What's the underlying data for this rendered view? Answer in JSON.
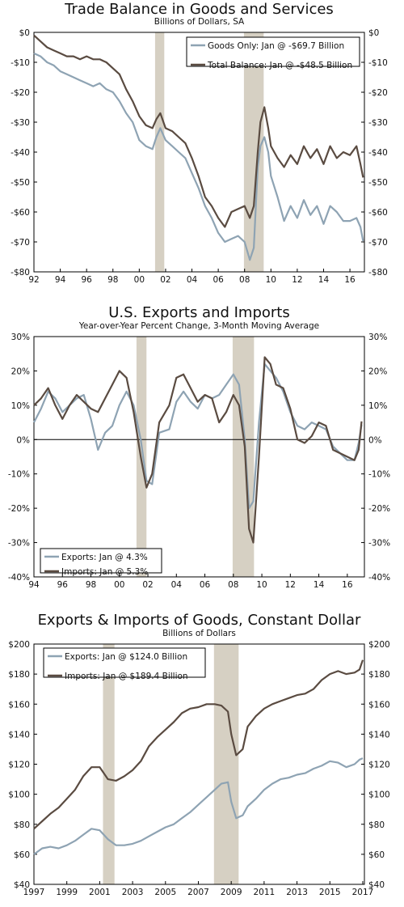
{
  "chart_data": [
    {
      "type": "line",
      "title": "Trade Balance in Goods and Services",
      "subtitle": "Billions of Dollars, SA",
      "ylim": [
        -80,
        0
      ],
      "yticks": [
        0,
        -10,
        -20,
        -30,
        -40,
        -50,
        -60,
        -70,
        -80
      ],
      "ytick_labels": [
        "$0",
        "-$10",
        "-$20",
        "-$30",
        "-$40",
        "-$50",
        "-$60",
        "-$70",
        "-$80"
      ],
      "xlim": [
        1992,
        2017.1
      ],
      "xticks": [
        1992,
        1994,
        1996,
        1998,
        2000,
        2002,
        2004,
        2006,
        2008,
        2010,
        2012,
        2014,
        2016
      ],
      "xtick_labels": [
        "92",
        "94",
        "96",
        "98",
        "00",
        "02",
        "04",
        "06",
        "08",
        "10",
        "12",
        "14",
        "16"
      ],
      "recessions": [
        [
          2001.2,
          2001.9
        ],
        [
          2007.95,
          2009.45
        ]
      ],
      "legend_position": "top-right",
      "series": [
        {
          "name": "Goods Only: Jan @ -$69.7 Billion",
          "color": "#8ea3b3",
          "x": [
            1992.0,
            1992.5,
            1993.0,
            1993.5,
            1994.0,
            1994.5,
            1995.0,
            1995.5,
            1996.0,
            1996.5,
            1997.0,
            1997.5,
            1998.0,
            1998.5,
            1999.0,
            1999.5,
            2000.0,
            2000.5,
            2001.0,
            2001.3,
            2001.6,
            2002.0,
            2002.5,
            2003.0,
            2003.5,
            2004.0,
            2004.5,
            2005.0,
            2005.5,
            2006.0,
            2006.5,
            2007.0,
            2007.5,
            2008.0,
            2008.4,
            2008.7,
            2009.0,
            2009.2,
            2009.5,
            2009.8,
            2010.0,
            2010.5,
            2011.0,
            2011.5,
            2012.0,
            2012.5,
            2013.0,
            2013.5,
            2014.0,
            2014.5,
            2015.0,
            2015.5,
            2016.0,
            2016.5,
            2016.8,
            2017.0
          ],
          "y": [
            -7,
            -8,
            -10,
            -11,
            -13,
            -14,
            -15,
            -16,
            -17,
            -18,
            -17,
            -19,
            -20,
            -23,
            -27,
            -30,
            -36,
            -38,
            -39,
            -35,
            -32,
            -36,
            -38,
            -40,
            -42,
            -47,
            -52,
            -58,
            -62,
            -67,
            -70,
            -69,
            -68,
            -70,
            -76,
            -72,
            -45,
            -38,
            -35,
            -40,
            -48,
            -55,
            -63,
            -58,
            -62,
            -56,
            -61,
            -58,
            -64,
            -58,
            -60,
            -63,
            -63,
            -62,
            -65,
            -69.7
          ]
        },
        {
          "name": "Total Balance: Jan @ -$48.5 Billion",
          "color": "#5a4b41",
          "x": [
            1992.0,
            1992.5,
            1993.0,
            1993.5,
            1994.0,
            1994.5,
            1995.0,
            1995.5,
            1996.0,
            1996.5,
            1997.0,
            1997.5,
            1998.0,
            1998.5,
            1999.0,
            1999.5,
            2000.0,
            2000.5,
            2001.0,
            2001.3,
            2001.6,
            2002.0,
            2002.5,
            2003.0,
            2003.5,
            2004.0,
            2004.5,
            2005.0,
            2005.5,
            2006.0,
            2006.5,
            2007.0,
            2007.5,
            2008.0,
            2008.4,
            2008.7,
            2009.0,
            2009.2,
            2009.5,
            2009.8,
            2010.0,
            2010.5,
            2011.0,
            2011.5,
            2012.0,
            2012.5,
            2013.0,
            2013.5,
            2014.0,
            2014.5,
            2015.0,
            2015.5,
            2016.0,
            2016.5,
            2016.8,
            2017.0
          ],
          "y": [
            -1,
            -3,
            -5,
            -6,
            -7,
            -8,
            -8,
            -9,
            -8,
            -9,
            -9,
            -10,
            -12,
            -14,
            -19,
            -23,
            -28,
            -31,
            -32,
            -29,
            -27,
            -32,
            -33,
            -35,
            -37,
            -42,
            -48,
            -55,
            -58,
            -62,
            -65,
            -60,
            -59,
            -58,
            -62,
            -58,
            -40,
            -30,
            -25,
            -32,
            -38,
            -42,
            -45,
            -41,
            -44,
            -38,
            -42,
            -39,
            -44,
            -38,
            -42,
            -40,
            -41,
            -38,
            -44,
            -48.5
          ]
        }
      ]
    },
    {
      "type": "line",
      "title": "U.S. Exports and Imports",
      "subtitle": "Year-over-Year Percent Change, 3-Month Moving Average",
      "ylim": [
        -40,
        30
      ],
      "yticks": [
        30,
        20,
        10,
        0,
        -10,
        -20,
        -30,
        -40
      ],
      "ytick_labels": [
        "30%",
        "20%",
        "10%",
        "0%",
        "-10%",
        "-20%",
        "-30%",
        "-40%"
      ],
      "xlim": [
        1994,
        2017.2
      ],
      "xticks": [
        1994,
        1996,
        1998,
        2000,
        2002,
        2004,
        2006,
        2008,
        2010,
        2012,
        2014,
        2016
      ],
      "xtick_labels": [
        "94",
        "96",
        "98",
        "00",
        "02",
        "04",
        "06",
        "08",
        "10",
        "12",
        "14",
        "16"
      ],
      "recessions": [
        [
          2001.2,
          2001.9
        ],
        [
          2007.95,
          2009.45
        ]
      ],
      "legend_position": "bottom-left",
      "series": [
        {
          "name": "Exports: Jan @ 4.3%",
          "color": "#8ea3b3",
          "x": [
            1994.0,
            1994.5,
            1995.0,
            1995.5,
            1996.0,
            1996.5,
            1997.0,
            1997.5,
            1998.0,
            1998.5,
            1999.0,
            1999.5,
            2000.0,
            2000.5,
            2001.0,
            2001.5,
            2001.9,
            2002.3,
            2002.8,
            2003.5,
            2004.0,
            2004.5,
            2005.0,
            2005.5,
            2006.0,
            2006.5,
            2007.0,
            2007.5,
            2008.0,
            2008.4,
            2008.8,
            2009.1,
            2009.4,
            2009.8,
            2010.2,
            2010.6,
            2011.0,
            2011.5,
            2012.0,
            2012.5,
            2013.0,
            2013.5,
            2014.0,
            2014.5,
            2015.0,
            2015.5,
            2016.0,
            2016.5,
            2016.8,
            2017.0
          ],
          "y": [
            5,
            9,
            14,
            12,
            8,
            10,
            12,
            13,
            6,
            -3,
            2,
            4,
            10,
            14,
            10,
            0,
            -12,
            -13,
            2,
            3,
            11,
            14,
            11,
            9,
            13,
            12,
            13,
            16,
            19,
            16,
            0,
            -20,
            -18,
            5,
            22,
            20,
            18,
            14,
            8,
            4,
            3,
            5,
            4,
            3,
            -2,
            -4,
            -6,
            -6,
            -1,
            4.3
          ]
        },
        {
          "name": "Imports: Jan @ 5.3%",
          "color": "#5a4b41",
          "x": [
            1994.0,
            1994.5,
            1995.0,
            1995.5,
            1996.0,
            1996.5,
            1997.0,
            1997.5,
            1998.0,
            1998.5,
            1999.0,
            1999.5,
            2000.0,
            2000.5,
            2001.0,
            2001.5,
            2001.9,
            2002.3,
            2002.8,
            2003.5,
            2004.0,
            2004.5,
            2005.0,
            2005.5,
            2006.0,
            2006.5,
            2007.0,
            2007.5,
            2008.0,
            2008.4,
            2008.8,
            2009.1,
            2009.4,
            2009.8,
            2010.2,
            2010.6,
            2011.0,
            2011.5,
            2012.0,
            2012.5,
            2013.0,
            2013.5,
            2014.0,
            2014.5,
            2015.0,
            2015.5,
            2016.0,
            2016.5,
            2016.8,
            2017.0
          ],
          "y": [
            10,
            12,
            15,
            10,
            6,
            10,
            13,
            11,
            9,
            8,
            12,
            16,
            20,
            18,
            8,
            -5,
            -14,
            -10,
            5,
            10,
            18,
            19,
            15,
            11,
            13,
            12,
            5,
            8,
            13,
            10,
            -2,
            -26,
            -30,
            -5,
            24,
            22,
            16,
            15,
            9,
            0,
            -1,
            1,
            5,
            4,
            -3,
            -4,
            -5,
            -6,
            -3,
            5.3
          ]
        }
      ]
    },
    {
      "type": "line",
      "title": "Exports & Imports of Goods, Constant Dollar",
      "subtitle": "Billions of Dollars",
      "ylim": [
        40,
        200
      ],
      "yticks": [
        200,
        180,
        160,
        140,
        120,
        100,
        80,
        60,
        40
      ],
      "ytick_labels": [
        "$200",
        "$180",
        "$160",
        "$140",
        "$120",
        "$100",
        "$80",
        "$60",
        "$40"
      ],
      "xlim": [
        1997,
        2017.1
      ],
      "xticks": [
        1997,
        1999,
        2001,
        2003,
        2005,
        2007,
        2009,
        2011,
        2013,
        2015,
        2017
      ],
      "xtick_labels": [
        "1997",
        "1999",
        "2001",
        "2003",
        "2005",
        "2007",
        "2009",
        "2011",
        "2013",
        "2015",
        "2017"
      ],
      "recessions": [
        [
          2001.2,
          2001.9
        ],
        [
          2007.95,
          2009.45
        ]
      ],
      "legend_position": "top-left",
      "series": [
        {
          "name": "Exports: Jan @ $124.0 Billion",
          "color": "#8ea3b3",
          "x": [
            1997.0,
            1997.5,
            1998.0,
            1998.5,
            1999.0,
            1999.5,
            2000.0,
            2000.5,
            2001.0,
            2001.5,
            2002.0,
            2002.5,
            2003.0,
            2003.5,
            2004.0,
            2004.5,
            2005.0,
            2005.5,
            2006.0,
            2006.5,
            2007.0,
            2007.5,
            2008.0,
            2008.4,
            2008.8,
            2009.0,
            2009.3,
            2009.7,
            2010.0,
            2010.5,
            2011.0,
            2011.5,
            2012.0,
            2012.5,
            2013.0,
            2013.5,
            2014.0,
            2014.5,
            2015.0,
            2015.5,
            2016.0,
            2016.5,
            2016.8,
            2017.0
          ],
          "y": [
            60,
            64,
            65,
            64,
            66,
            69,
            73,
            77,
            76,
            70,
            66,
            66,
            67,
            69,
            72,
            75,
            78,
            80,
            84,
            88,
            93,
            98,
            103,
            107,
            108,
            95,
            84,
            86,
            92,
            97,
            103,
            107,
            110,
            111,
            113,
            114,
            117,
            119,
            122,
            121,
            118,
            120,
            123,
            124
          ]
        },
        {
          "name": "Imports: Jan @ $189.4 Billion",
          "color": "#5a4b41",
          "x": [
            1997.0,
            1997.5,
            1998.0,
            1998.5,
            1999.0,
            1999.5,
            2000.0,
            2000.5,
            2001.0,
            2001.5,
            2002.0,
            2002.5,
            2003.0,
            2003.5,
            2004.0,
            2004.5,
            2005.0,
            2005.5,
            2006.0,
            2006.5,
            2007.0,
            2007.5,
            2008.0,
            2008.4,
            2008.8,
            2009.0,
            2009.3,
            2009.7,
            2010.0,
            2010.5,
            2011.0,
            2011.5,
            2012.0,
            2012.5,
            2013.0,
            2013.5,
            2014.0,
            2014.5,
            2015.0,
            2015.5,
            2016.0,
            2016.5,
            2016.8,
            2017.0
          ],
          "y": [
            77,
            82,
            87,
            91,
            97,
            103,
            112,
            118,
            118,
            110,
            109,
            112,
            116,
            122,
            132,
            138,
            143,
            148,
            154,
            157,
            158,
            160,
            160,
            159,
            155,
            140,
            126,
            130,
            145,
            152,
            157,
            160,
            162,
            164,
            166,
            167,
            170,
            176,
            180,
            182,
            180,
            181,
            183,
            189.4
          ]
        }
      ]
    }
  ]
}
